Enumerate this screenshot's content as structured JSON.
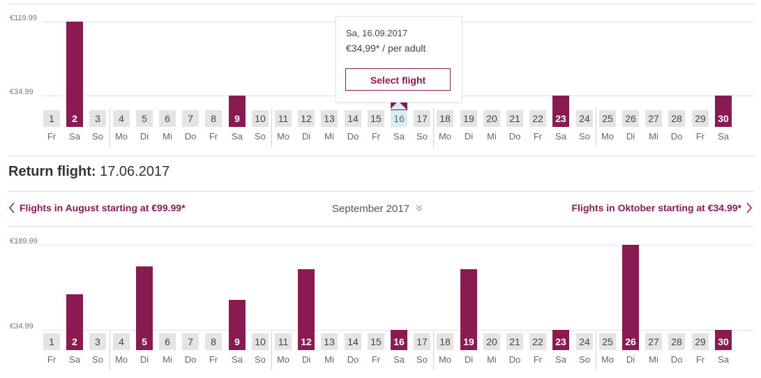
{
  "colors": {
    "accent": "#8a1a52",
    "selected": "#d8eef6",
    "cell": "#e4e4e4"
  },
  "outbound": {
    "ymax_label": "€119.99",
    "ymin_label": "€34.99",
    "tooltip": {
      "date": "Sa, 16.09.2017",
      "price": "€34,99* / per adult",
      "button": "Select flight"
    },
    "days": [
      "1",
      "2",
      "3",
      "4",
      "5",
      "6",
      "7",
      "8",
      "9",
      "10",
      "11",
      "12",
      "13",
      "14",
      "15",
      "16",
      "17",
      "18",
      "19",
      "20",
      "21",
      "22",
      "23",
      "24",
      "25",
      "26",
      "27",
      "28",
      "29",
      "30"
    ],
    "weekdays": [
      "Fr",
      "Sa",
      "So",
      "Mo",
      "Di",
      "Mi",
      "Do",
      "Fr",
      "Sa",
      "So",
      "Mo",
      "Di",
      "Mi",
      "Do",
      "Fr",
      "Sa",
      "So",
      "Mo",
      "Di",
      "Mi",
      "Do",
      "Fr",
      "Sa",
      "So",
      "Mo",
      "Di",
      "Mi",
      "Do",
      "Fr",
      "Sa"
    ],
    "available_days": [
      2,
      9,
      23,
      30
    ],
    "selected_day": 16
  },
  "return": {
    "label": "Return flight:",
    "date": "17.06.2017",
    "prev_month": "Flights in August starting at €99.99*",
    "current_month": "September 2017",
    "next_month": "Flights in Oktober starting at €34.99*",
    "ymax_label": "€189.99",
    "ymin_label": "€34.99",
    "days": [
      "1",
      "2",
      "3",
      "4",
      "5",
      "6",
      "7",
      "8",
      "9",
      "10",
      "11",
      "12",
      "13",
      "14",
      "15",
      "16",
      "17",
      "18",
      "19",
      "20",
      "21",
      "22",
      "23",
      "24",
      "25",
      "26",
      "27",
      "28",
      "29",
      "30"
    ],
    "weekdays": [
      "Fr",
      "Sa",
      "So",
      "Mo",
      "Di",
      "Mi",
      "Do",
      "Fr",
      "Sa",
      "So",
      "Mo",
      "Di",
      "Mi",
      "Do",
      "Fr",
      "Sa",
      "So",
      "Mo",
      "Di",
      "Mi",
      "Do",
      "Fr",
      "Sa",
      "So",
      "Mo",
      "Di",
      "Mi",
      "Do",
      "Fr",
      "Sa"
    ],
    "available_days": [
      2,
      5,
      9,
      12,
      16,
      19,
      23,
      26,
      30
    ]
  },
  "chart_data": [
    {
      "type": "bar",
      "title": "",
      "categories": [
        "1",
        "2",
        "3",
        "4",
        "5",
        "6",
        "7",
        "8",
        "9",
        "10",
        "11",
        "12",
        "13",
        "14",
        "15",
        "16",
        "17",
        "18",
        "19",
        "20",
        "21",
        "22",
        "23",
        "24",
        "25",
        "26",
        "27",
        "28",
        "29",
        "30"
      ],
      "values": [
        null,
        119.99,
        null,
        null,
        null,
        null,
        null,
        null,
        34.99,
        null,
        null,
        null,
        null,
        null,
        null,
        34.99,
        null,
        null,
        null,
        null,
        null,
        null,
        34.99,
        null,
        null,
        null,
        null,
        null,
        null,
        34.99
      ],
      "ylim": [
        34.99,
        119.99
      ]
    },
    {
      "type": "bar",
      "title": "",
      "categories": [
        "1",
        "2",
        "3",
        "4",
        "5",
        "6",
        "7",
        "8",
        "9",
        "10",
        "11",
        "12",
        "13",
        "14",
        "15",
        "16",
        "17",
        "18",
        "19",
        "20",
        "21",
        "22",
        "23",
        "24",
        "25",
        "26",
        "27",
        "28",
        "29",
        "30"
      ],
      "values": [
        null,
        99.99,
        null,
        null,
        149.99,
        null,
        null,
        null,
        89.99,
        null,
        null,
        144.99,
        null,
        null,
        null,
        34.99,
        null,
        null,
        144.99,
        null,
        null,
        null,
        34.99,
        null,
        null,
        189.99,
        null,
        null,
        null,
        34.99
      ],
      "ylim": [
        34.99,
        189.99
      ]
    }
  ]
}
